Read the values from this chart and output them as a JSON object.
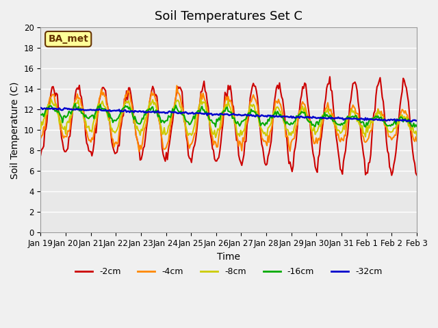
{
  "title": "Soil Temperatures Set C",
  "xlabel": "Time",
  "ylabel": "Soil Temperature (C)",
  "ylim": [
    0,
    20
  ],
  "yticks": [
    0,
    2,
    4,
    6,
    8,
    10,
    12,
    14,
    16,
    18,
    20
  ],
  "colors": {
    "-2cm": "#cc0000",
    "-4cm": "#ff8800",
    "-8cm": "#cccc00",
    "-16cm": "#00aa00",
    "-32cm": "#0000cc"
  },
  "legend_labels": [
    "-2cm",
    "-4cm",
    "-8cm",
    "-16cm",
    "-32cm"
  ],
  "xtick_labels": [
    "Jan 19",
    "Jan 20",
    "Jan 21",
    "Jan 22",
    "Jan 23",
    "Jan 24",
    "Jan 25",
    "Jan 26",
    "Jan 27",
    "Jan 28",
    "Jan 29",
    "Jan 30",
    "Jan 31",
    "Feb 1",
    "Feb 2",
    "Feb 3"
  ],
  "background_color": "#e8e8e8",
  "annotation_text": "BA_met",
  "annotation_bg": "#ffff99",
  "annotation_border": "#663300",
  "title_fontsize": 13,
  "axis_label_fontsize": 10,
  "tick_fontsize": 8.5
}
